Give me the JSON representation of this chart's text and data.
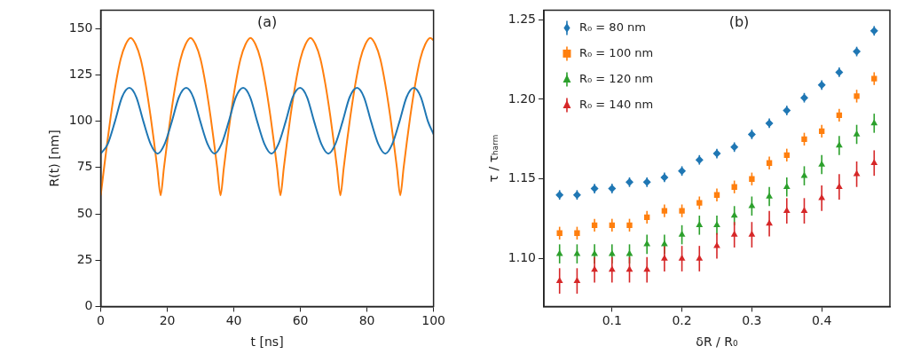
{
  "chart_data": [
    {
      "type": "line",
      "xlabel": "t [ns]",
      "ylabel": "R(t) [nm]",
      "annotations": [
        "(a)"
      ],
      "xlim": [
        0,
        100
      ],
      "xticks": [
        0,
        20,
        40,
        60,
        80,
        100
      ],
      "ylim": [
        0,
        160
      ],
      "yticks": [
        0,
        25,
        50,
        75,
        100,
        125,
        150
      ],
      "grid": false,
      "marker": "none",
      "line_style": "solid",
      "series": [
        {
          "color": "#1f77b4",
          "x": [
            0,
            2.1,
            4.3,
            6.4,
            8.6,
            10.7,
            12.8,
            15.0,
            17.1,
            19.2,
            21.4,
            23.5,
            25.7,
            27.8,
            29.9,
            32.1,
            34.2,
            36.3,
            38.5,
            40.6,
            42.8,
            44.9,
            47.0,
            49.2,
            51.3,
            53.4,
            55.6,
            57.7,
            59.9,
            62.0,
            64.1,
            66.3,
            68.4,
            70.5,
            72.7,
            74.8,
            77.0,
            79.1,
            81.2,
            83.4,
            85.5,
            87.6,
            89.8,
            91.9,
            94.1,
            96.2,
            98.3,
            100
          ],
          "values": [
            82.5,
            87.7,
            100,
            113,
            118,
            113,
            100,
            87.7,
            82.5,
            87.7,
            100,
            113,
            118,
            113,
            100,
            87.7,
            82.5,
            87.7,
            100,
            113,
            118,
            113,
            100,
            87.7,
            82.5,
            87.7,
            100,
            113,
            118,
            113,
            100,
            87.7,
            82.5,
            87.7,
            100,
            113,
            118,
            113,
            100,
            87.7,
            82.5,
            87.7,
            100,
            113,
            118,
            113,
            100,
            93
          ]
        },
        {
          "color": "#ff7f0e",
          "x": [
            0,
            1,
            2,
            3,
            4.5,
            6,
            7.5,
            9,
            10.5,
            12,
            13.5,
            15,
            16,
            17,
            18,
            19,
            20,
            21,
            22.5,
            24,
            25.5,
            27,
            28.5,
            30,
            31.5,
            33,
            34,
            35,
            36,
            37,
            38,
            39,
            40.5,
            42,
            43.5,
            45,
            46.5,
            48,
            49.5,
            51,
            52,
            53,
            54,
            55,
            56,
            57,
            58.5,
            60,
            61.5,
            63,
            64.5,
            66,
            67.5,
            69,
            70,
            71,
            72,
            73,
            74,
            75,
            76.5,
            78,
            79.5,
            81,
            82.5,
            84,
            85.5,
            87,
            88,
            89,
            90,
            91,
            92,
            93,
            94.5,
            96,
            97.5,
            99,
            100
          ],
          "values": [
            60,
            74.8,
            89.1,
            102.5,
            120,
            133.6,
            141.5,
            145,
            141.5,
            133.6,
            120,
            102.5,
            89.1,
            74.8,
            60,
            74.8,
            89.1,
            102.5,
            120,
            133.6,
            141.5,
            145,
            141.5,
            133.6,
            120,
            102.5,
            89.1,
            74.8,
            60,
            74.8,
            89.1,
            102.5,
            120,
            133.6,
            141.5,
            145,
            141.5,
            133.6,
            120,
            102.5,
            89.1,
            74.8,
            60,
            74.8,
            89.1,
            102.5,
            120,
            133.6,
            141.5,
            145,
            141.5,
            133.6,
            120,
            102.5,
            89.1,
            74.8,
            60,
            74.8,
            89.1,
            102.5,
            120,
            133.6,
            141.5,
            145,
            141.5,
            133.6,
            120,
            102.5,
            89.1,
            74.8,
            60,
            74.8,
            89.1,
            102.5,
            120,
            133.6,
            141.5,
            145,
            143.7
          ]
        }
      ]
    },
    {
      "type": "scatter",
      "xlabel": "δR / R₀",
      "ylabel": "τ / τₕₐᵣₘ",
      "annotations": [
        "(b)"
      ],
      "xlim": [
        0.0025,
        0.4975
      ],
      "xticks": [
        0.1,
        0.2,
        0.3,
        0.4
      ],
      "ylim": [
        1.07,
        1.256
      ],
      "yticks": [
        {
          "value": 1.1,
          "label": "1.10"
        },
        1.15,
        {
          "value": 1.2,
          "label": "1.20"
        },
        1.25
      ],
      "grid": false,
      "legend": "top left",
      "x": [
        0.025,
        0.05,
        0.075,
        0.1,
        0.125,
        0.15,
        0.175,
        0.2,
        0.225,
        0.25,
        0.275,
        0.3,
        0.325,
        0.35,
        0.375,
        0.4,
        0.425,
        0.45,
        0.475
      ],
      "series": [
        {
          "name": "R₀ = 80 nm",
          "color": "#1f77b4",
          "marker": "diamond",
          "values": [
            1.14,
            1.14,
            1.144,
            1.144,
            1.148,
            1.148,
            1.151,
            1.155,
            1.162,
            1.166,
            1.17,
            1.178,
            1.185,
            1.193,
            1.201,
            1.209,
            1.217,
            1.23,
            1.243
          ],
          "errors": [
            0.003,
            0.003,
            0.003,
            0.003,
            0.003,
            0.003,
            0.003,
            0.003,
            0.003,
            0.003,
            0.003,
            0.003,
            0.003,
            0.003,
            0.003,
            0.003,
            0.003,
            0.003,
            0.003
          ]
        },
        {
          "name": "R₀ = 100 nm",
          "color": "#ff7f0e",
          "marker": "square",
          "values": [
            1.116,
            1.116,
            1.121,
            1.121,
            1.121,
            1.126,
            1.13,
            1.13,
            1.135,
            1.14,
            1.145,
            1.15,
            1.16,
            1.165,
            1.175,
            1.18,
            1.19,
            1.202,
            1.213
          ],
          "errors": [
            0.004,
            0.004,
            0.004,
            0.004,
            0.004,
            0.004,
            0.004,
            0.004,
            0.004,
            0.004,
            0.004,
            0.004,
            0.004,
            0.004,
            0.004,
            0.004,
            0.004,
            0.004,
            0.004
          ]
        },
        {
          "name": "R₀ = 120 nm",
          "color": "#2ca02c",
          "marker": "triangle",
          "values": [
            1.103,
            1.103,
            1.103,
            1.103,
            1.103,
            1.109,
            1.109,
            1.115,
            1.121,
            1.121,
            1.127,
            1.133,
            1.139,
            1.145,
            1.152,
            1.159,
            1.171,
            1.178,
            1.185
          ],
          "errors": [
            0.006,
            0.006,
            0.006,
            0.006,
            0.006,
            0.006,
            0.006,
            0.006,
            0.006,
            0.006,
            0.006,
            0.006,
            0.006,
            0.006,
            0.006,
            0.006,
            0.006,
            0.006,
            0.006
          ]
        },
        {
          "name": "R₀ = 140 nm",
          "color": "#d62728",
          "marker": "triangle",
          "values": [
            1.086,
            1.086,
            1.093,
            1.093,
            1.093,
            1.093,
            1.1,
            1.1,
            1.1,
            1.108,
            1.115,
            1.115,
            1.122,
            1.13,
            1.13,
            1.138,
            1.145,
            1.153,
            1.16
          ],
          "errors": [
            0.008,
            0.008,
            0.008,
            0.008,
            0.008,
            0.008,
            0.008,
            0.008,
            0.008,
            0.008,
            0.008,
            0.008,
            0.008,
            0.008,
            0.008,
            0.008,
            0.008,
            0.008,
            0.008
          ]
        }
      ]
    }
  ]
}
